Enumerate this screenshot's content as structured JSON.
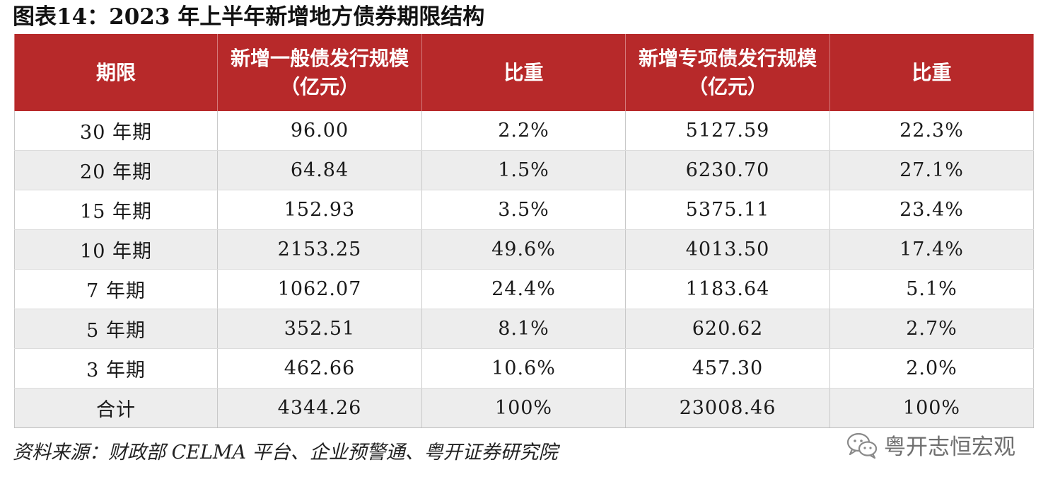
{
  "title": "图表14：2023 年上半年新增地方债券期限结构",
  "table": {
    "headers": [
      "期限",
      "新增一般债发行规模（亿元）",
      "比重",
      "新增专项债发行规模（亿元）",
      "比重"
    ],
    "rows": [
      [
        "30 年期",
        "96.00",
        "2.2%",
        "5127.59",
        "22.3%"
      ],
      [
        "20 年期",
        "64.84",
        "1.5%",
        "6230.70",
        "27.1%"
      ],
      [
        "15 年期",
        "152.93",
        "3.5%",
        "5375.11",
        "23.4%"
      ],
      [
        "10 年期",
        "2153.25",
        "49.6%",
        "4013.50",
        "17.4%"
      ],
      [
        "7 年期",
        "1062.07",
        "24.4%",
        "1183.64",
        "5.1%"
      ],
      [
        "5 年期",
        "352.51",
        "8.1%",
        "620.62",
        "2.7%"
      ],
      [
        "3 年期",
        "462.66",
        "10.6%",
        "457.30",
        "2.0%"
      ],
      [
        "合计",
        "4344.26",
        "100%",
        "23008.46",
        "100%"
      ]
    ]
  },
  "source": "资料来源：财政部 CELMA 平台、企业预警通、粤开证券研究院",
  "watermark": {
    "text": "粤开志恒宏观",
    "icon": "wechat-icon"
  },
  "colors": {
    "header_bg": "#b7292a",
    "header_text": "#ffffff",
    "stripe_bg": "#ededed"
  }
}
